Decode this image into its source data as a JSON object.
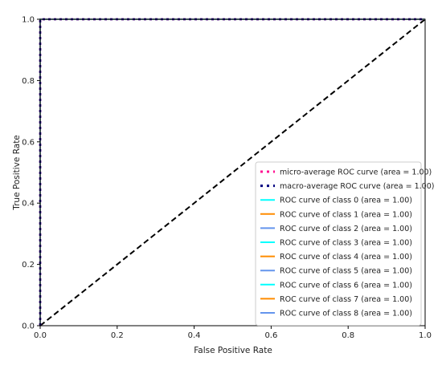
{
  "chart_data": {
    "type": "line",
    "title": "",
    "xlabel": "False Positive Rate",
    "ylabel": "True Positive Rate",
    "xlim": [
      0.0,
      1.0
    ],
    "ylim": [
      0.0,
      1.0
    ],
    "x_ticks": [
      "0.0",
      "0.2",
      "0.4",
      "0.6",
      "0.8",
      "1.0"
    ],
    "y_ticks": [
      "0.0",
      "0.2",
      "0.4",
      "0.6",
      "0.8",
      "1.0"
    ],
    "grid": false,
    "legend_position": "lower-right",
    "series": [
      {
        "name": "micro-average ROC curve (area = 1.00)",
        "color": "#ff1493",
        "style": "dotted",
        "x": [
          0,
          0,
          1
        ],
        "y": [
          0,
          1,
          1
        ]
      },
      {
        "name": "macro-average ROC curve (area = 1.00)",
        "color": "#000080",
        "style": "dotted",
        "x": [
          0,
          0,
          1
        ],
        "y": [
          0,
          1,
          1
        ]
      },
      {
        "name": "ROC curve of class 0 (area = 1.00)",
        "color": "#00ffff",
        "style": "solid",
        "x": [
          0,
          0,
          1
        ],
        "y": [
          0,
          1,
          1
        ]
      },
      {
        "name": "ROC curve of class 1 (area = 1.00)",
        "color": "#ff8c00",
        "style": "solid",
        "x": [
          0,
          0,
          1
        ],
        "y": [
          0,
          1,
          1
        ]
      },
      {
        "name": "ROC curve of class 2 (area = 1.00)",
        "color": "#6495ed",
        "style": "solid",
        "x": [
          0,
          0,
          1
        ],
        "y": [
          0,
          1,
          1
        ]
      },
      {
        "name": "ROC curve of class 3 (area = 1.00)",
        "color": "#00ffff",
        "style": "solid",
        "x": [
          0,
          0,
          1
        ],
        "y": [
          0,
          1,
          1
        ]
      },
      {
        "name": "ROC curve of class 4 (area = 1.00)",
        "color": "#ff8c00",
        "style": "solid",
        "x": [
          0,
          0,
          1
        ],
        "y": [
          0,
          1,
          1
        ]
      },
      {
        "name": "ROC curve of class 5 (area = 1.00)",
        "color": "#6495ed",
        "style": "solid",
        "x": [
          0,
          0,
          1
        ],
        "y": [
          0,
          1,
          1
        ]
      },
      {
        "name": "ROC curve of class 6 (area = 1.00)",
        "color": "#00ffff",
        "style": "solid",
        "x": [
          0,
          0,
          1
        ],
        "y": [
          0,
          1,
          1
        ]
      },
      {
        "name": "ROC curve of class 7 (area = 1.00)",
        "color": "#ff8c00",
        "style": "solid",
        "x": [
          0,
          0,
          1
        ],
        "y": [
          0,
          1,
          1
        ]
      },
      {
        "name": "ROC curve of class 8 (area = 1.00)",
        "color": "#6495ed",
        "style": "solid",
        "x": [
          0,
          0,
          1
        ],
        "y": [
          0,
          1,
          1
        ]
      }
    ],
    "reference_line": {
      "color": "#000000",
      "style": "dashed",
      "x": [
        0,
        1
      ],
      "y": [
        0,
        1
      ]
    }
  }
}
